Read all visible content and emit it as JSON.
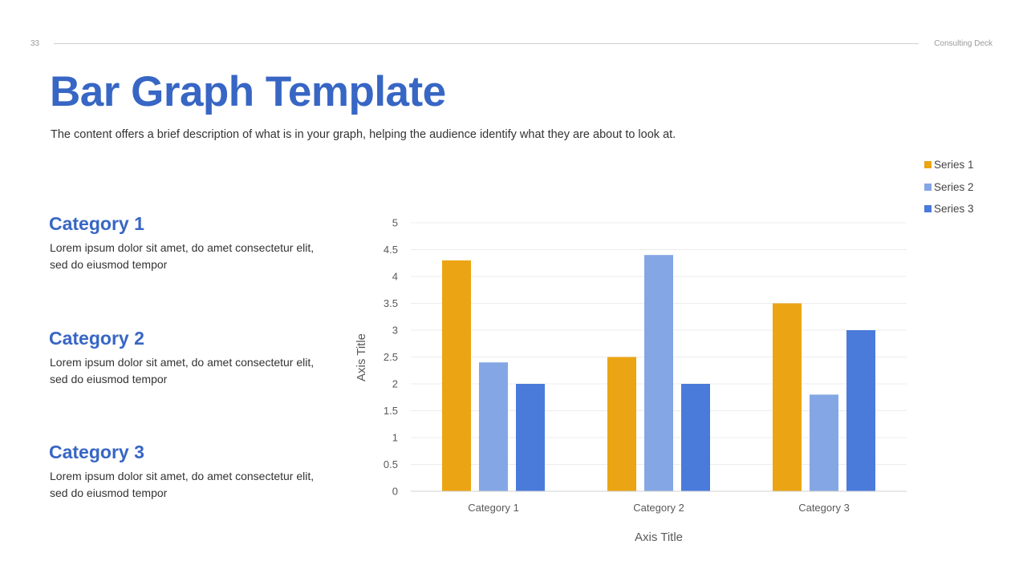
{
  "header": {
    "slide_number": "33",
    "deck_name": "Consulting Deck"
  },
  "title": "Bar Graph Template",
  "subtitle": "The content offers a brief description of what is in your graph, helping the audience identify what they are about to look at.",
  "categories_text": [
    {
      "title": "Category 1",
      "line1": "Lorem ipsum dolor sit amet, do amet consectetur elit,",
      "line2": "sed do eiusmod tempor"
    },
    {
      "title": "Category 2",
      "line1": "Lorem ipsum dolor sit amet, do amet consectetur elit,",
      "line2": "sed do eiusmod tempor"
    },
    {
      "title": "Category 3",
      "line1": "Lorem ipsum dolor sit amet, do amet consectetur elit,",
      "line2": "sed do eiusmod tempor"
    }
  ],
  "chart_data": {
    "type": "bar",
    "title": "",
    "categories": [
      "Category 1",
      "Category 2",
      "Category 3"
    ],
    "series": [
      {
        "name": "Series 1",
        "values": [
          4.3,
          2.5,
          3.5
        ],
        "color": "#eba514"
      },
      {
        "name": "Series 2",
        "values": [
          2.4,
          4.4,
          1.8
        ],
        "color": "#84a6e4"
      },
      {
        "name": "Series 3",
        "values": [
          2.0,
          2.0,
          3.0
        ],
        "color": "#4a7bdb"
      }
    ],
    "xlabel": "Axis Title",
    "ylabel": "Axis Title",
    "ylim": [
      0,
      5
    ],
    "yticks": [
      "0",
      "0.5",
      "1",
      "1.5",
      "2",
      "2.5",
      "3",
      "3.5",
      "4",
      "4.5",
      "5"
    ],
    "grid": true,
    "legend_position": "top-right"
  }
}
